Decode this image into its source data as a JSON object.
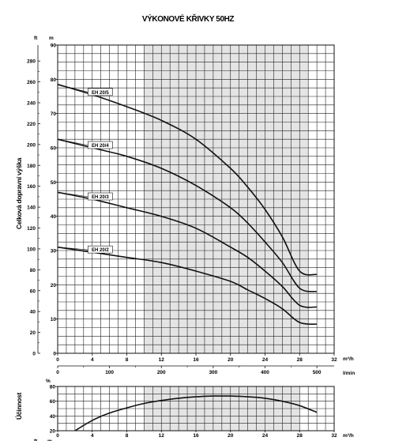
{
  "chart_data": [
    {
      "type": "line",
      "title": "VÝKONOVÉ KŘIVKY 50HZ",
      "ylabel": "Celková dopravní výška",
      "y_unit_left": "ft",
      "y_unit_right": "m",
      "x_unit_top": "m³/h",
      "x_unit_bottom": "l/min",
      "xlim": [
        0,
        32
      ],
      "ylim": [
        0,
        90
      ],
      "x_ticks": [
        0,
        4,
        8,
        12,
        16,
        20,
        24,
        28,
        32
      ],
      "y_ticks_m": [
        0,
        10,
        20,
        30,
        40,
        50,
        60,
        70,
        80,
        90
      ],
      "y_ticks_ft": [
        0,
        20,
        40,
        60,
        80,
        100,
        120,
        140,
        160,
        180,
        200,
        220,
        240,
        260,
        280
      ],
      "x2_ticks_lmin": [
        0,
        100,
        200,
        300,
        400,
        500
      ],
      "shaded_range": [
        10,
        29
      ],
      "grid": true,
      "series": [
        {
          "name": "EH 20/5",
          "x": [
            0,
            4,
            8,
            12,
            16,
            20,
            22,
            24,
            26,
            28,
            30
          ],
          "y": [
            78.5,
            75.5,
            72,
            68,
            62.5,
            54,
            48.5,
            42,
            34,
            24,
            23
          ]
        },
        {
          "name": "EH 20/4",
          "x": [
            0,
            4,
            8,
            12,
            16,
            20,
            22,
            24,
            26,
            28,
            30
          ],
          "y": [
            62.5,
            60,
            57.5,
            54,
            49,
            42.5,
            38,
            32.5,
            26.5,
            19,
            18
          ]
        },
        {
          "name": "EH 20/3",
          "x": [
            0,
            4,
            8,
            12,
            16,
            20,
            22,
            24,
            26,
            28,
            30
          ],
          "y": [
            47,
            45,
            42.5,
            40,
            36.5,
            31,
            28,
            24,
            19.5,
            14,
            13.5
          ]
        },
        {
          "name": "EH 20/2",
          "x": [
            0,
            4,
            8,
            12,
            16,
            20,
            22,
            24,
            26,
            28,
            30
          ],
          "y": [
            31,
            29.5,
            28,
            26.5,
            24,
            21,
            18.5,
            16,
            13,
            9,
            8.5
          ]
        }
      ]
    },
    {
      "type": "line",
      "ylabel": "Účinnost",
      "y_unit": "%",
      "x_unit_top": "m³/h",
      "xlim": [
        0,
        32
      ],
      "ylim": [
        20,
        80
      ],
      "x_ticks": [
        0,
        4,
        8,
        12,
        16,
        20,
        24,
        28,
        32
      ],
      "y_ticks": [
        20,
        40,
        60,
        80
      ],
      "shaded_range": [
        10,
        28
      ],
      "grid": true,
      "series": [
        {
          "x": [
            2,
            4,
            6,
            8,
            10,
            12,
            14,
            16,
            18,
            20,
            22,
            24,
            26,
            28,
            30
          ],
          "y": [
            20,
            34,
            44,
            51,
            57,
            61,
            64,
            66,
            67,
            67,
            66,
            64,
            60,
            54,
            45
          ]
        }
      ]
    }
  ],
  "bottom_axis_units": {
    "left": "ft",
    "right": "m"
  }
}
